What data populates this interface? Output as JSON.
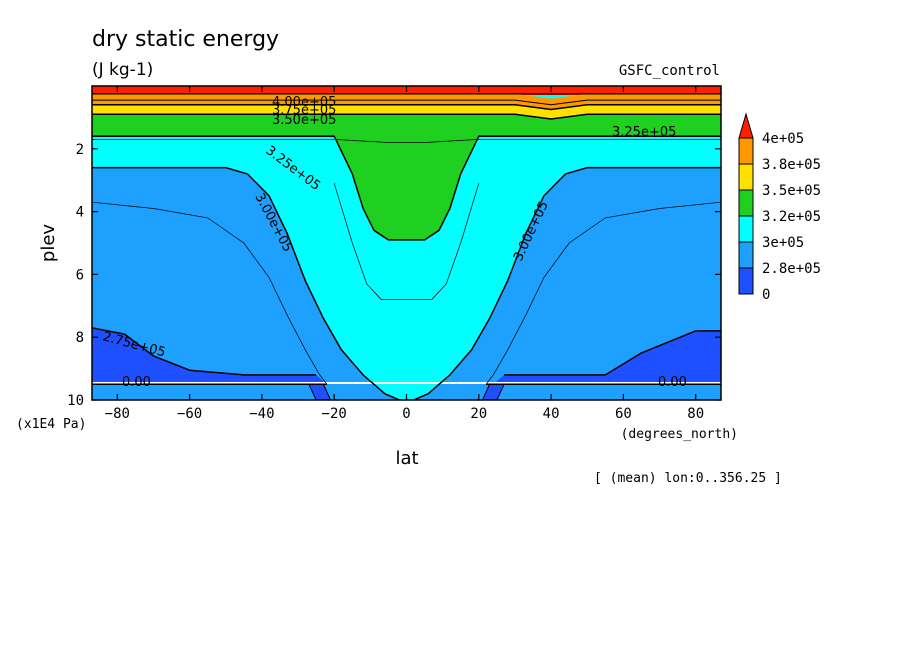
{
  "chart_data": {
    "type": "contour",
    "title": "dry static energy",
    "units": "(J kg-1)",
    "source_label": "GSFC_control",
    "xlabel": "lat",
    "x_units": "(degrees_north)",
    "ylabel": "plev",
    "y_units": "(x1E4 Pa)",
    "footnote": "[ (mean) lon:0..356.25 ]",
    "xlim": [
      -87,
      87
    ],
    "ylim": [
      10,
      0
    ],
    "x_ticks": [
      -80,
      -60,
      -40,
      -20,
      0,
      20,
      40,
      60,
      80
    ],
    "x_tick_labels": [
      "−80",
      "−60",
      "−40",
      "−20",
      "0",
      "20",
      "40",
      "60",
      "80"
    ],
    "y_ticks": [
      2,
      4,
      6,
      8,
      10
    ],
    "y_tick_labels": [
      "2",
      "4",
      "6",
      "8",
      "10"
    ],
    "colorbar": {
      "labels": [
        "4e+05",
        "3.8e+05",
        "3.5e+05",
        "3.2e+05",
        "3e+05",
        "2.8e+05",
        "0"
      ],
      "colors": [
        "#ff2000",
        "#ff9800",
        "#ffe000",
        "#20d020",
        "#00ffff",
        "#1ea0ff",
        "#1e50ff"
      ]
    },
    "contour_labels": [
      "4.00e+05",
      "3.75e+05",
      "3.50e+05",
      "3.25e+05",
      "3.25e+05",
      "3.00e+05",
      "3.00e+05",
      "2.75e+05",
      "0.00",
      "0.00"
    ],
    "fields": {
      "green_bottom": [
        [
          -87,
          1.6
        ],
        [
          -20,
          1.6
        ],
        [
          -15,
          2.8
        ],
        [
          -12,
          3.9
        ],
        [
          -9,
          4.6
        ],
        [
          -5,
          4.9
        ],
        [
          5,
          4.9
        ],
        [
          9,
          4.6
        ],
        [
          12,
          3.9
        ],
        [
          15,
          2.8
        ],
        [
          20,
          1.6
        ],
        [
          87,
          1.6
        ]
      ],
      "cyan_bottom": [
        [
          -87,
          2.6
        ],
        [
          -50,
          2.6
        ],
        [
          -44,
          2.8
        ],
        [
          -38,
          3.5
        ],
        [
          -33,
          4.7
        ],
        [
          -28,
          6.2
        ],
        [
          -23,
          7.4
        ],
        [
          -18,
          8.4
        ],
        [
          -12,
          9.2
        ],
        [
          -6,
          9.8
        ],
        [
          -2,
          10.0
        ],
        [
          2,
          10.0
        ],
        [
          6,
          9.8
        ],
        [
          12,
          9.2
        ],
        [
          18,
          8.4
        ],
        [
          23,
          7.4
        ],
        [
          28,
          6.2
        ],
        [
          33,
          4.7
        ],
        [
          38,
          3.5
        ],
        [
          44,
          2.8
        ],
        [
          50,
          2.6
        ],
        [
          87,
          2.6
        ]
      ],
      "dark_blue_left": [
        [
          -87,
          7.7
        ],
        [
          -78,
          7.9
        ],
        [
          -70,
          8.6
        ],
        [
          -60,
          9.05
        ],
        [
          -45,
          9.2
        ],
        [
          -25,
          9.2
        ],
        [
          -22,
          9.5
        ],
        [
          -87,
          9.5
        ]
      ],
      "dark_blue_right": [
        [
          87,
          7.8
        ],
        [
          80,
          7.8
        ],
        [
          65,
          8.5
        ],
        [
          55,
          9.2
        ],
        [
          40,
          9.2
        ],
        [
          27,
          9.2
        ],
        [
          24,
          9.5
        ],
        [
          87,
          9.5
        ]
      ],
      "ground_left": [
        [
          -27,
          9.5
        ],
        [
          -23,
          9.5
        ],
        [
          -21,
          10.0
        ],
        [
          -25,
          10.0
        ]
      ],
      "ground_right": [
        [
          23,
          9.5
        ],
        [
          27,
          9.5
        ],
        [
          25,
          10.0
        ],
        [
          21,
          10.0
        ]
      ],
      "thin_upper": [
        [
          -87,
          1.7
        ],
        [
          -20,
          1.7
        ],
        [
          -5,
          1.8
        ],
        [
          5,
          1.8
        ],
        [
          20,
          1.7
        ],
        [
          87,
          1.7
        ]
      ],
      "thin_mid": [
        [
          -87,
          3.7
        ],
        [
          -70,
          3.9
        ],
        [
          -55,
          4.2
        ],
        [
          -45,
          5.0
        ],
        [
          -38,
          6.1
        ],
        [
          -33,
          7.3
        ],
        [
          -28,
          8.4
        ],
        [
          -24,
          9.2
        ],
        [
          -22,
          9.5
        ]
      ],
      "thin_mid_r": [
        [
          87,
          3.7
        ],
        [
          70,
          3.9
        ],
        [
          55,
          4.2
        ],
        [
          45,
          5.0
        ],
        [
          38,
          6.1
        ],
        [
          33,
          7.3
        ],
        [
          28,
          8.4
        ],
        [
          24,
          9.2
        ],
        [
          22,
          9.5
        ]
      ],
      "thin_center": [
        [
          -20,
          3.1
        ],
        [
          -15,
          5.0
        ],
        [
          -11,
          6.3
        ],
        [
          -7,
          6.8
        ],
        [
          7,
          6.8
        ],
        [
          11,
          6.3
        ],
        [
          15,
          5.0
        ],
        [
          20,
          3.1
        ]
      ]
    }
  }
}
